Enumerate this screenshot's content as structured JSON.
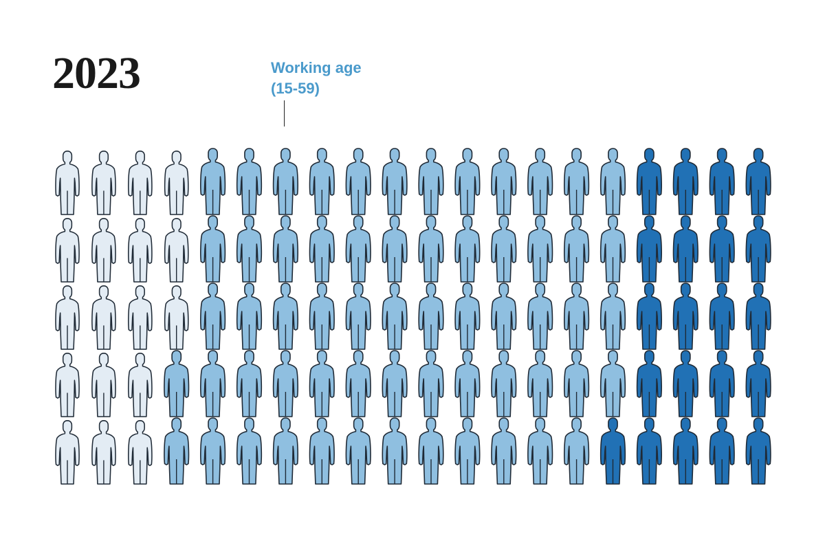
{
  "chart_data": {
    "type": "pictogram",
    "title": "2023",
    "annotation": {
      "line1": "Working age",
      "line2": "(15-59)"
    },
    "rows": 5,
    "columns": 20,
    "units_total": 100,
    "groups": [
      {
        "key": "young",
        "count": 18,
        "color": "#e3ecf4"
      },
      {
        "key": "working",
        "count": 61,
        "color": "#8fbfe0"
      },
      {
        "key": "old",
        "count": 21,
        "color": "#2171b5"
      }
    ],
    "fill_order": "column-major, top to bottom"
  },
  "colors": {
    "outline": "#1f2a36",
    "annotation": "#4a9acb",
    "title": "#1a1a1a"
  }
}
